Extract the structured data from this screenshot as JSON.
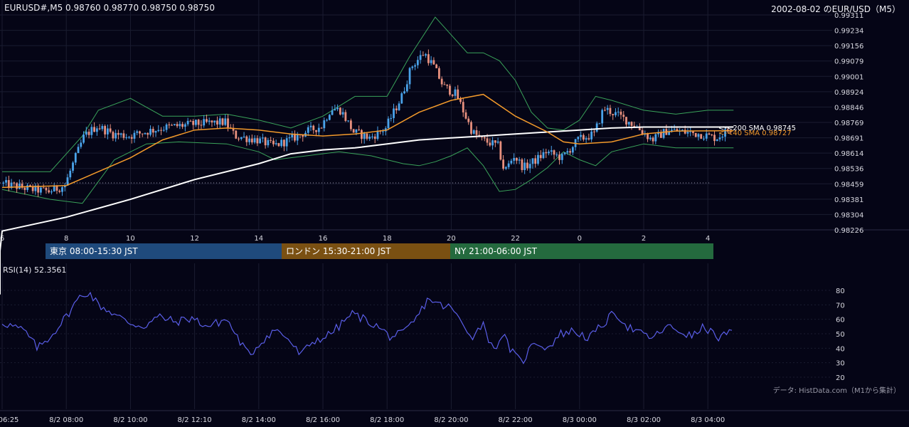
{
  "header": {
    "symbol_info": "EURUSD#,M5 0.98760 0.98770 0.98750 0.98750",
    "chart_title": "2002-08-02 のEUR/USD（M5）"
  },
  "sessions": [
    {
      "label": "東京 08:00-15:30 JST",
      "color": "#1f4a7c"
    },
    {
      "label": "ロンドン 15:30-21:00 JST",
      "color": "#7a5012"
    },
    {
      "label": "NY 21:00-06:00 JST",
      "color": "#246a3e"
    }
  ],
  "rsi_label": "RSI(14) 52.3561",
  "credit": "データ: HistData.com（M1から集計）",
  "colors": {
    "background": "#050516",
    "up_candle": "#4aa3ea",
    "down_candle": "#e8907e",
    "sma200": "#ffffff",
    "sma40": "#f39a2b",
    "bollinger": "#3aa35a",
    "rsi": "#5a5ee8",
    "grid": "#1a1c30"
  },
  "chart_data": [
    {
      "type": "candlestick",
      "timeframe": "M5",
      "price_axis_ticks": [
        "0.99311",
        "0.99234",
        "0.99156",
        "0.99079",
        "0.99001",
        "0.98924",
        "0.98846",
        "0.98769",
        "0.98691",
        "0.98614",
        "0.98536",
        "0.98459",
        "0.98381",
        "0.98304",
        "0.98226"
      ],
      "ylim": [
        0.98226,
        0.99311
      ],
      "x_axis_hours": [
        "6",
        "8",
        "10",
        "12",
        "14",
        "16",
        "18",
        "20",
        "22",
        "0",
        "2",
        "4"
      ],
      "time_labels": [
        "06:25",
        "8/2 08:00",
        "8/2 10:00",
        "8/2 12:10",
        "8/2 14:00",
        "8/2 16:00",
        "8/2 18:00",
        "8/2 20:00",
        "8/2 22:00",
        "8/3 00:00",
        "8/3 02:00",
        "8/3 04:00"
      ],
      "reference_level": 0.98463,
      "sma200_label": "<-<200 SMA 0.98745",
      "sma40_label": "<-<40 SMA 0.98727",
      "last_values": {
        "open": 0.9876,
        "high": 0.9877,
        "low": 0.9875,
        "close": 0.9875,
        "sma200": 0.98745,
        "sma40": 0.98727
      },
      "close_path": [
        {
          "t": 0.0,
          "v": 0.9846
        },
        {
          "t": 1.0,
          "v": 0.9843
        },
        {
          "t": 1.5,
          "v": 0.9842
        },
        {
          "t": 2.0,
          "v": 0.9845
        },
        {
          "t": 2.3,
          "v": 0.9858
        },
        {
          "t": 2.6,
          "v": 0.987
        },
        {
          "t": 3.0,
          "v": 0.9875
        },
        {
          "t": 3.5,
          "v": 0.9871
        },
        {
          "t": 4.0,
          "v": 0.987
        },
        {
          "t": 5.0,
          "v": 0.9874
        },
        {
          "t": 6.0,
          "v": 0.9876
        },
        {
          "t": 7.0,
          "v": 0.9877
        },
        {
          "t": 7.3,
          "v": 0.987
        },
        {
          "t": 8.0,
          "v": 0.9868
        },
        {
          "t": 8.5,
          "v": 0.9865
        },
        {
          "t": 9.0,
          "v": 0.9868
        },
        {
          "t": 9.5,
          "v": 0.9872
        },
        {
          "t": 10.0,
          "v": 0.9875
        },
        {
          "t": 10.3,
          "v": 0.9884
        },
        {
          "t": 10.6,
          "v": 0.9883
        },
        {
          "t": 11.0,
          "v": 0.9872
        },
        {
          "t": 11.5,
          "v": 0.9869
        },
        {
          "t": 12.0,
          "v": 0.9874
        },
        {
          "t": 12.5,
          "v": 0.989
        },
        {
          "t": 12.8,
          "v": 0.9905
        },
        {
          "t": 13.2,
          "v": 0.9912
        },
        {
          "t": 13.5,
          "v": 0.9905
        },
        {
          "t": 13.8,
          "v": 0.9895
        },
        {
          "t": 14.2,
          "v": 0.9891
        },
        {
          "t": 14.7,
          "v": 0.9872
        },
        {
          "t": 15.0,
          "v": 0.9868
        },
        {
          "t": 15.5,
          "v": 0.9865
        },
        {
          "t": 15.7,
          "v": 0.9852
        },
        {
          "t": 16.0,
          "v": 0.986
        },
        {
          "t": 16.3,
          "v": 0.9854
        },
        {
          "t": 16.7,
          "v": 0.9858
        },
        {
          "t": 17.0,
          "v": 0.9862
        },
        {
          "t": 17.5,
          "v": 0.9859
        },
        {
          "t": 18.0,
          "v": 0.9868
        },
        {
          "t": 18.5,
          "v": 0.9871
        },
        {
          "t": 18.8,
          "v": 0.9884
        },
        {
          "t": 19.3,
          "v": 0.988
        },
        {
          "t": 19.8,
          "v": 0.9875
        },
        {
          "t": 20.3,
          "v": 0.9868
        },
        {
          "t": 20.8,
          "v": 0.9873
        },
        {
          "t": 21.3,
          "v": 0.9872
        },
        {
          "t": 21.8,
          "v": 0.9871
        },
        {
          "t": 22.3,
          "v": 0.9869
        },
        {
          "t": 22.8,
          "v": 0.9874
        }
      ],
      "sma200_path": [
        {
          "t": -6.0,
          "v": 0.979
        },
        {
          "t": -3.0,
          "v": 0.9812
        },
        {
          "t": 0.0,
          "v": 0.9822
        },
        {
          "t": 2.0,
          "v": 0.9829
        },
        {
          "t": 4.0,
          "v": 0.9838
        },
        {
          "t": 6.0,
          "v": 0.9848
        },
        {
          "t": 8.0,
          "v": 0.9856
        },
        {
          "t": 9.0,
          "v": 0.9861
        },
        {
          "t": 10.0,
          "v": 0.9863
        },
        {
          "t": 11.0,
          "v": 0.9864
        },
        {
          "t": 12.0,
          "v": 0.9866
        },
        {
          "t": 13.0,
          "v": 0.9868
        },
        {
          "t": 14.0,
          "v": 0.9869
        },
        {
          "t": 15.0,
          "v": 0.987
        },
        {
          "t": 16.0,
          "v": 0.9871
        },
        {
          "t": 17.0,
          "v": 0.9872
        },
        {
          "t": 18.0,
          "v": 0.9873
        },
        {
          "t": 19.0,
          "v": 0.9874
        },
        {
          "t": 20.0,
          "v": 0.98745
        },
        {
          "t": 22.8,
          "v": 0.98745
        }
      ],
      "sma40_path": [
        {
          "t": 0.0,
          "v": 0.9844
        },
        {
          "t": 2.0,
          "v": 0.9845
        },
        {
          "t": 3.0,
          "v": 0.9852
        },
        {
          "t": 4.0,
          "v": 0.9859
        },
        {
          "t": 5.0,
          "v": 0.9868
        },
        {
          "t": 6.0,
          "v": 0.9873
        },
        {
          "t": 7.0,
          "v": 0.9874
        },
        {
          "t": 8.0,
          "v": 0.9873
        },
        {
          "t": 9.0,
          "v": 0.9871
        },
        {
          "t": 10.0,
          "v": 0.987
        },
        {
          "t": 11.0,
          "v": 0.9871
        },
        {
          "t": 12.0,
          "v": 0.9873
        },
        {
          "t": 13.0,
          "v": 0.9882
        },
        {
          "t": 14.0,
          "v": 0.9888
        },
        {
          "t": 15.0,
          "v": 0.9891
        },
        {
          "t": 16.0,
          "v": 0.988
        },
        {
          "t": 17.0,
          "v": 0.9872
        },
        {
          "t": 17.5,
          "v": 0.9867
        },
        {
          "t": 18.0,
          "v": 0.9866
        },
        {
          "t": 19.0,
          "v": 0.9867
        },
        {
          "t": 20.0,
          "v": 0.9871
        },
        {
          "t": 21.0,
          "v": 0.98725
        },
        {
          "t": 22.8,
          "v": 0.98727
        }
      ],
      "bb_upper_path": [
        {
          "t": 0.0,
          "v": 0.9852
        },
        {
          "t": 1.5,
          "v": 0.9852
        },
        {
          "t": 2.5,
          "v": 0.987
        },
        {
          "t": 3.0,
          "v": 0.9883
        },
        {
          "t": 4.0,
          "v": 0.9889
        },
        {
          "t": 5.0,
          "v": 0.988
        },
        {
          "t": 6.0,
          "v": 0.988
        },
        {
          "t": 7.0,
          "v": 0.9881
        },
        {
          "t": 8.0,
          "v": 0.9878
        },
        {
          "t": 9.0,
          "v": 0.9874
        },
        {
          "t": 10.0,
          "v": 0.988
        },
        {
          "t": 11.0,
          "v": 0.989
        },
        {
          "t": 12.0,
          "v": 0.989
        },
        {
          "t": 12.7,
          "v": 0.991
        },
        {
          "t": 13.5,
          "v": 0.993
        },
        {
          "t": 14.0,
          "v": 0.9921
        },
        {
          "t": 14.5,
          "v": 0.9912
        },
        {
          "t": 15.0,
          "v": 0.9912
        },
        {
          "t": 15.5,
          "v": 0.9908
        },
        {
          "t": 16.0,
          "v": 0.9898
        },
        {
          "t": 16.5,
          "v": 0.9882
        },
        {
          "t": 17.0,
          "v": 0.9874
        },
        {
          "t": 17.5,
          "v": 0.9873
        },
        {
          "t": 18.0,
          "v": 0.9878
        },
        {
          "t": 18.5,
          "v": 0.989
        },
        {
          "t": 19.0,
          "v": 0.9888
        },
        {
          "t": 20.0,
          "v": 0.9883
        },
        {
          "t": 21.0,
          "v": 0.9881
        },
        {
          "t": 22.0,
          "v": 0.9883
        },
        {
          "t": 22.8,
          "v": 0.9883
        }
      ],
      "bb_lower_path": [
        {
          "t": 0.0,
          "v": 0.9843
        },
        {
          "t": 1.5,
          "v": 0.9838
        },
        {
          "t": 2.5,
          "v": 0.9836
        },
        {
          "t": 3.5,
          "v": 0.9858
        },
        {
          "t": 4.5,
          "v": 0.9866
        },
        {
          "t": 5.5,
          "v": 0.9867
        },
        {
          "t": 7.0,
          "v": 0.9866
        },
        {
          "t": 8.0,
          "v": 0.9862
        },
        {
          "t": 8.5,
          "v": 0.9858
        },
        {
          "t": 9.5,
          "v": 0.986
        },
        {
          "t": 10.5,
          "v": 0.9862
        },
        {
          "t": 11.5,
          "v": 0.986
        },
        {
          "t": 12.0,
          "v": 0.9858
        },
        {
          "t": 12.5,
          "v": 0.9856
        },
        {
          "t": 13.0,
          "v": 0.9855
        },
        {
          "t": 13.5,
          "v": 0.9857
        },
        {
          "t": 14.0,
          "v": 0.986
        },
        {
          "t": 14.5,
          "v": 0.9864
        },
        {
          "t": 15.0,
          "v": 0.9855
        },
        {
          "t": 15.5,
          "v": 0.9842
        },
        {
          "t": 16.0,
          "v": 0.9843
        },
        {
          "t": 16.5,
          "v": 0.9848
        },
        {
          "t": 17.0,
          "v": 0.9854
        },
        {
          "t": 17.5,
          "v": 0.9862
        },
        {
          "t": 18.0,
          "v": 0.9858
        },
        {
          "t": 18.5,
          "v": 0.9855
        },
        {
          "t": 19.0,
          "v": 0.9862
        },
        {
          "t": 20.0,
          "v": 0.9866
        },
        {
          "t": 21.0,
          "v": 0.9864
        },
        {
          "t": 22.8,
          "v": 0.9864
        }
      ]
    },
    {
      "type": "line",
      "title": "RSI(14) 52.3561",
      "ylim": [
        20,
        80
      ],
      "y_ticks": [
        "80",
        "70",
        "60",
        "50",
        "40",
        "30",
        "20"
      ],
      "last_value": 52.3561,
      "values_path": [
        {
          "t": 0.0,
          "v": 58
        },
        {
          "t": 0.7,
          "v": 52
        },
        {
          "t": 1.1,
          "v": 40
        },
        {
          "t": 1.5,
          "v": 48
        },
        {
          "t": 2.0,
          "v": 62
        },
        {
          "t": 2.4,
          "v": 75
        },
        {
          "t": 2.7,
          "v": 79
        },
        {
          "t": 3.0,
          "v": 70
        },
        {
          "t": 3.4,
          "v": 65
        },
        {
          "t": 3.9,
          "v": 58
        },
        {
          "t": 4.4,
          "v": 55
        },
        {
          "t": 4.9,
          "v": 62
        },
        {
          "t": 5.4,
          "v": 58
        },
        {
          "t": 5.9,
          "v": 61
        },
        {
          "t": 6.4,
          "v": 55
        },
        {
          "t": 7.0,
          "v": 60
        },
        {
          "t": 7.4,
          "v": 45
        },
        {
          "t": 7.7,
          "v": 35
        },
        {
          "t": 8.1,
          "v": 45
        },
        {
          "t": 8.5,
          "v": 53
        },
        {
          "t": 8.9,
          "v": 47
        },
        {
          "t": 9.3,
          "v": 35
        },
        {
          "t": 9.7,
          "v": 45
        },
        {
          "t": 10.1,
          "v": 48
        },
        {
          "t": 10.5,
          "v": 55
        },
        {
          "t": 10.9,
          "v": 64
        },
        {
          "t": 11.3,
          "v": 60
        },
        {
          "t": 11.7,
          "v": 55
        },
        {
          "t": 12.1,
          "v": 48
        },
        {
          "t": 12.5,
          "v": 50
        },
        {
          "t": 12.9,
          "v": 60
        },
        {
          "t": 13.3,
          "v": 75
        },
        {
          "t": 13.6,
          "v": 70
        },
        {
          "t": 14.0,
          "v": 68
        },
        {
          "t": 14.4,
          "v": 55
        },
        {
          "t": 14.7,
          "v": 48
        },
        {
          "t": 15.0,
          "v": 58
        },
        {
          "t": 15.3,
          "v": 38
        },
        {
          "t": 15.6,
          "v": 50
        },
        {
          "t": 15.9,
          "v": 37
        },
        {
          "t": 16.2,
          "v": 30
        },
        {
          "t": 16.6,
          "v": 45
        },
        {
          "t": 17.0,
          "v": 40
        },
        {
          "t": 17.4,
          "v": 50
        },
        {
          "t": 17.8,
          "v": 52
        },
        {
          "t": 18.3,
          "v": 47
        },
        {
          "t": 18.8,
          "v": 58
        },
        {
          "t": 19.1,
          "v": 65
        },
        {
          "t": 19.5,
          "v": 55
        },
        {
          "t": 19.9,
          "v": 50
        },
        {
          "t": 20.3,
          "v": 47
        },
        {
          "t": 20.7,
          "v": 55
        },
        {
          "t": 21.1,
          "v": 52
        },
        {
          "t": 21.5,
          "v": 48
        },
        {
          "t": 21.9,
          "v": 55
        },
        {
          "t": 22.3,
          "v": 47
        },
        {
          "t": 22.6,
          "v": 50
        },
        {
          "t": 22.8,
          "v": 52.36
        }
      ]
    }
  ]
}
